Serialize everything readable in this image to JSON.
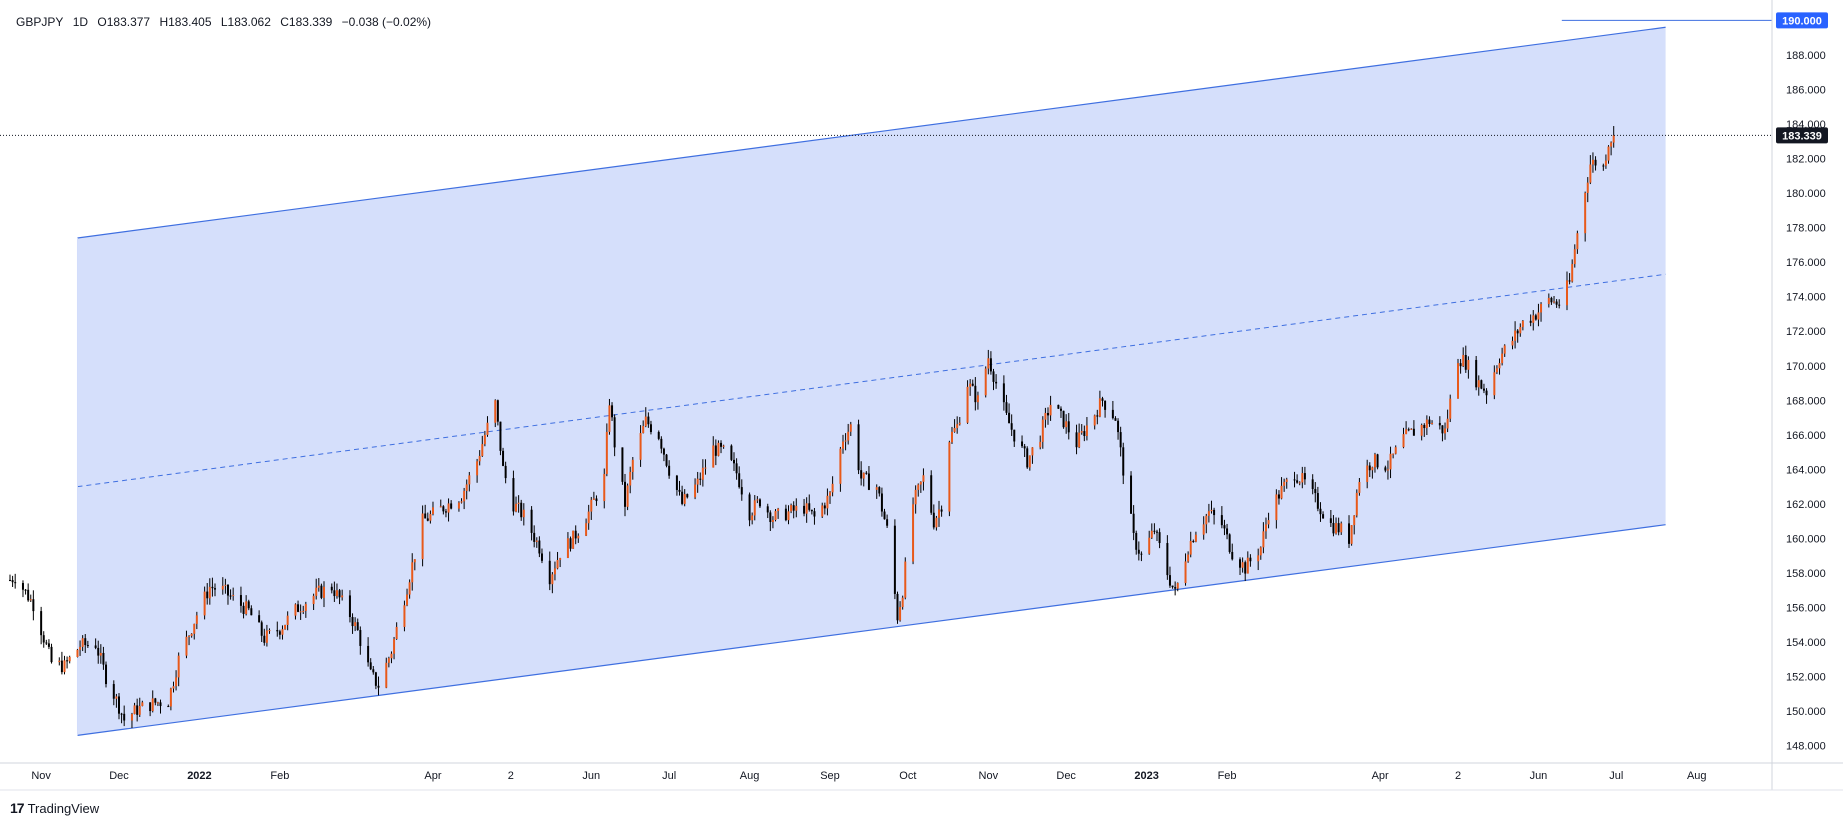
{
  "header": {
    "symbol": "GBPJPY",
    "interval": "1D",
    "open": "O183.377",
    "high": "H183.405",
    "low": "L183.062",
    "close": "C183.339",
    "change": "−0.038 (−0.02%)"
  },
  "footer": {
    "brand": "TradingView",
    "logo_text": "17"
  },
  "colors": {
    "up": "#e8591a",
    "down": "#000000",
    "channel_fill": "#d3ddfb",
    "channel_line": "#3f6fe0",
    "label_bg_blue": "#2962ff",
    "label_bg_dark": "#131722"
  },
  "chart_data": {
    "type": "candlestick",
    "symbol": "GBPJPY",
    "interval": "1D",
    "ylim": [
      147.0,
      190.6
    ],
    "y_ticks": [
      148,
      150,
      152,
      154,
      156,
      158,
      160,
      162,
      164,
      166,
      168,
      170,
      172,
      174,
      176,
      178,
      180,
      182,
      184,
      186,
      188
    ],
    "y_tick_labels": [
      "148.000",
      "150.000",
      "152.000",
      "154.000",
      "156.000",
      "158.000",
      "160.000",
      "162.000",
      "164.000",
      "166.000",
      "168.000",
      "170.000",
      "172.000",
      "174.000",
      "176.000",
      "178.000",
      "180.000",
      "182.000",
      "184.000",
      "186.000",
      "188.000"
    ],
    "x_range": [
      "2021-10-20",
      "2023-08-30"
    ],
    "x_ticks": [
      {
        "date": "2021-11-01",
        "label": "Nov"
      },
      {
        "date": "2021-12-01",
        "label": "Dec"
      },
      {
        "date": "2022-01-01",
        "label": "2022"
      },
      {
        "date": "2022-02-01",
        "label": "Feb"
      },
      {
        "date": "2022-04-01",
        "label": "Apr"
      },
      {
        "date": "2022-05-01",
        "label": "2"
      },
      {
        "date": "2022-06-01",
        "label": "Jun"
      },
      {
        "date": "2022-07-01",
        "label": "Jul"
      },
      {
        "date": "2022-08-01",
        "label": "Aug"
      },
      {
        "date": "2022-09-01",
        "label": "Sep"
      },
      {
        "date": "2022-10-01",
        "label": "Oct"
      },
      {
        "date": "2022-11-01",
        "label": "Nov"
      },
      {
        "date": "2022-12-01",
        "label": "Dec"
      },
      {
        "date": "2023-01-01",
        "label": "2023"
      },
      {
        "date": "2023-02-01",
        "label": "Feb"
      },
      {
        "date": "2023-04-01",
        "label": "Apr"
      },
      {
        "date": "2023-05-01",
        "label": "2"
      },
      {
        "date": "2023-06-01",
        "label": "Jun"
      },
      {
        "date": "2023-07-01",
        "label": "Jul"
      },
      {
        "date": "2023-08-01",
        "label": "Aug"
      }
    ],
    "price_path": [
      [
        "2021-10-20",
        157.6
      ],
      [
        "2021-10-22",
        157.8
      ],
      [
        "2021-10-29",
        156.2
      ],
      [
        "2021-11-05",
        152.8
      ],
      [
        "2021-11-10",
        152.6
      ],
      [
        "2021-11-16",
        153.8
      ],
      [
        "2021-11-22",
        153.9
      ],
      [
        "2021-11-26",
        152.0
      ],
      [
        "2021-12-01",
        150.3
      ],
      [
        "2021-12-03",
        149.5
      ],
      [
        "2021-12-08",
        150.1
      ],
      [
        "2021-12-15",
        150.5
      ],
      [
        "2021-12-20",
        150.6
      ],
      [
        "2021-12-24",
        153.0
      ],
      [
        "2021-12-31",
        155.6
      ],
      [
        "2022-01-05",
        157.2
      ],
      [
        "2022-01-10",
        157.0
      ],
      [
        "2022-01-14",
        156.5
      ],
      [
        "2022-01-20",
        155.8
      ],
      [
        "2022-01-26",
        154.2
      ],
      [
        "2022-02-01",
        154.8
      ],
      [
        "2022-02-08",
        156.0
      ],
      [
        "2022-02-15",
        156.8
      ],
      [
        "2022-02-21",
        157.2
      ],
      [
        "2022-02-28",
        155.6
      ],
      [
        "2022-03-03",
        154.6
      ],
      [
        "2022-03-08",
        152.1
      ],
      [
        "2022-03-11",
        151.5
      ],
      [
        "2022-03-16",
        153.5
      ],
      [
        "2022-03-22",
        157.2
      ],
      [
        "2022-03-28",
        161.0
      ],
      [
        "2022-04-05",
        161.8
      ],
      [
        "2022-04-12",
        162.5
      ],
      [
        "2022-04-18",
        164.5
      ],
      [
        "2022-04-21",
        166.0
      ],
      [
        "2022-04-25",
        167.8
      ],
      [
        "2022-04-28",
        164.0
      ],
      [
        "2022-05-02",
        162.0
      ],
      [
        "2022-05-06",
        161.3
      ],
      [
        "2022-05-12",
        159.5
      ],
      [
        "2022-05-16",
        157.8
      ],
      [
        "2022-05-20",
        159.2
      ],
      [
        "2022-05-25",
        160.0
      ],
      [
        "2022-05-31",
        161.5
      ],
      [
        "2022-06-06",
        163.5
      ],
      [
        "2022-06-08",
        168.0
      ],
      [
        "2022-06-10",
        165.5
      ],
      [
        "2022-06-14",
        162.0
      ],
      [
        "2022-06-17",
        164.5
      ],
      [
        "2022-06-22",
        166.8
      ],
      [
        "2022-06-27",
        166.0
      ],
      [
        "2022-07-01",
        164.0
      ],
      [
        "2022-07-06",
        162.0
      ],
      [
        "2022-07-12",
        163.2
      ],
      [
        "2022-07-18",
        165.2
      ],
      [
        "2022-07-22",
        165.0
      ],
      [
        "2022-07-27",
        163.8
      ],
      [
        "2022-08-01",
        161.5
      ],
      [
        "2022-08-05",
        162.2
      ],
      [
        "2022-08-10",
        161.2
      ],
      [
        "2022-08-16",
        161.5
      ],
      [
        "2022-08-22",
        161.8
      ],
      [
        "2022-08-26",
        161.2
      ],
      [
        "2022-09-01",
        162.5
      ],
      [
        "2022-09-06",
        165.8
      ],
      [
        "2022-09-09",
        166.5
      ],
      [
        "2022-09-13",
        163.5
      ],
      [
        "2022-09-19",
        163.0
      ],
      [
        "2022-09-23",
        160.5
      ],
      [
        "2022-09-27",
        155.5
      ],
      [
        "2022-09-29",
        157.0
      ],
      [
        "2022-10-03",
        162.0
      ],
      [
        "2022-10-07",
        163.5
      ],
      [
        "2022-10-11",
        161.0
      ],
      [
        "2022-10-14",
        162.0
      ],
      [
        "2022-10-17",
        165.8
      ],
      [
        "2022-10-20",
        166.5
      ],
      [
        "2022-10-24",
        169.0
      ],
      [
        "2022-10-28",
        168.0
      ],
      [
        "2022-11-01",
        170.5
      ],
      [
        "2022-11-03",
        169.5
      ],
      [
        "2022-11-08",
        167.0
      ],
      [
        "2022-11-11",
        166.0
      ],
      [
        "2022-11-16",
        164.5
      ],
      [
        "2022-11-21",
        166.0
      ],
      [
        "2022-11-25",
        167.8
      ],
      [
        "2022-11-30",
        166.8
      ],
      [
        "2022-12-05",
        165.5
      ],
      [
        "2022-12-09",
        166.5
      ],
      [
        "2022-12-15",
        168.0
      ],
      [
        "2022-12-20",
        167.0
      ],
      [
        "2022-12-22",
        165.0
      ],
      [
        "2022-12-27",
        160.0
      ],
      [
        "2022-12-30",
        159.0
      ],
      [
        "2023-01-04",
        160.5
      ],
      [
        "2023-01-09",
        158.0
      ],
      [
        "2023-01-12",
        156.8
      ],
      [
        "2023-01-17",
        159.5
      ],
      [
        "2023-01-20",
        160.5
      ],
      [
        "2023-01-25",
        161.5
      ],
      [
        "2023-01-30",
        160.8
      ],
      [
        "2023-02-03",
        159.2
      ],
      [
        "2023-02-08",
        158.3
      ],
      [
        "2023-02-14",
        159.5
      ],
      [
        "2023-02-17",
        161.5
      ],
      [
        "2023-02-22",
        162.8
      ],
      [
        "2023-02-27",
        163.8
      ],
      [
        "2023-03-03",
        163.2
      ],
      [
        "2023-03-08",
        162.0
      ],
      [
        "2023-03-13",
        160.8
      ],
      [
        "2023-03-17",
        160.5
      ],
      [
        "2023-03-20",
        160.0
      ],
      [
        "2023-03-24",
        163.5
      ],
      [
        "2023-03-29",
        164.5
      ],
      [
        "2023-04-04",
        164.2
      ],
      [
        "2023-04-10",
        165.8
      ],
      [
        "2023-04-14",
        166.2
      ],
      [
        "2023-04-20",
        166.8
      ],
      [
        "2023-04-26",
        166.2
      ],
      [
        "2023-05-01",
        170.5
      ],
      [
        "2023-05-04",
        170.2
      ],
      [
        "2023-05-08",
        169.2
      ],
      [
        "2023-05-12",
        168.5
      ],
      [
        "2023-05-17",
        170.5
      ],
      [
        "2023-05-22",
        171.5
      ],
      [
        "2023-05-26",
        172.5
      ],
      [
        "2023-05-31",
        173.0
      ],
      [
        "2023-06-05",
        173.8
      ],
      [
        "2023-06-09",
        173.6
      ],
      [
        "2023-06-13",
        174.8
      ],
      [
        "2023-06-15",
        176.8
      ],
      [
        "2023-06-19",
        180.2
      ],
      [
        "2023-06-21",
        181.7
      ],
      [
        "2023-06-23",
        181.8
      ],
      [
        "2023-06-26",
        181.5
      ],
      [
        "2023-06-28",
        183.0
      ],
      [
        "2023-06-30",
        183.339
      ]
    ],
    "channel": {
      "start_date": "2021-11-15",
      "end_date": "2023-07-20",
      "upper": [
        177.4,
        189.6
      ],
      "middle": [
        163.0,
        175.3
      ],
      "lower": [
        148.6,
        160.8
      ]
    },
    "horizontal_line": {
      "start_date": "2023-06-10",
      "value": 190.0,
      "label": "190.000"
    },
    "last_price": {
      "value": 183.339,
      "label": "183.339"
    }
  }
}
